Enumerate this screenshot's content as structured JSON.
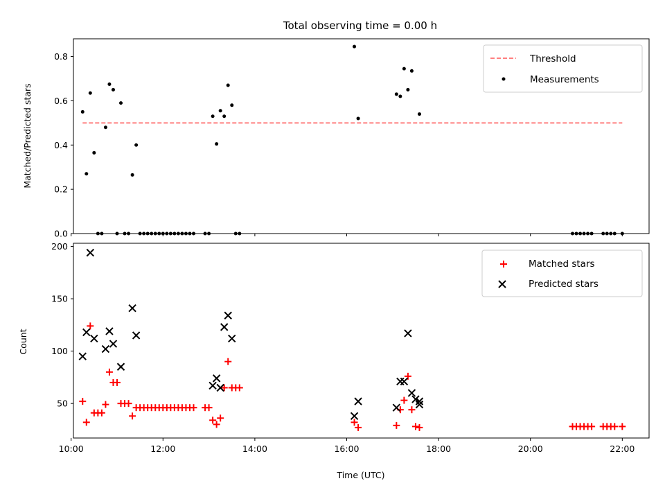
{
  "chart_data": [
    {
      "type": "scatter",
      "title": "Total observing time = 0.00 h",
      "xlabel": "",
      "ylabel": "Matched/Predicted stars",
      "xlim": [
        "10:03",
        "22:35"
      ],
      "ylim": [
        0,
        0.88
      ],
      "yticks": [
        0.0,
        0.2,
        0.4,
        0.6,
        0.8
      ],
      "ytick_labels": [
        "0.0",
        "0.2",
        "0.4",
        "0.6",
        "0.8"
      ],
      "legend_position": "top-right",
      "threshold": {
        "name": "Threshold",
        "value": 0.5,
        "x_start": "10:15",
        "x_end": "22:00",
        "color": "#ff7f7f"
      },
      "series": [
        {
          "name": "Measurements",
          "marker": "dot",
          "color": "#000000",
          "points": [
            [
              "10:15",
              0.55
            ],
            [
              "10:20",
              0.27
            ],
            [
              "10:25",
              0.635
            ],
            [
              "10:30",
              0.365
            ],
            [
              "10:35",
              0.0
            ],
            [
              "10:40",
              0.0
            ],
            [
              "10:45",
              0.48
            ],
            [
              "10:50",
              0.675
            ],
            [
              "10:55",
              0.65
            ],
            [
              "11:00",
              0.0
            ],
            [
              "11:05",
              0.59
            ],
            [
              "11:10",
              0.0
            ],
            [
              "11:15",
              0.0
            ],
            [
              "11:20",
              0.265
            ],
            [
              "11:25",
              0.4
            ],
            [
              "11:30",
              0.0
            ],
            [
              "11:35",
              0.0
            ],
            [
              "11:40",
              0.0
            ],
            [
              "11:45",
              0.0
            ],
            [
              "11:50",
              0.0
            ],
            [
              "11:55",
              0.0
            ],
            [
              "12:00",
              0.0
            ],
            [
              "12:05",
              0.0
            ],
            [
              "12:10",
              0.0
            ],
            [
              "12:15",
              0.0
            ],
            [
              "12:20",
              0.0
            ],
            [
              "12:25",
              0.0
            ],
            [
              "12:30",
              0.0
            ],
            [
              "12:35",
              0.0
            ],
            [
              "12:40",
              0.0
            ],
            [
              "12:55",
              0.0
            ],
            [
              "13:00",
              0.0
            ],
            [
              "13:05",
              0.53
            ],
            [
              "13:10",
              0.405
            ],
            [
              "13:15",
              0.555
            ],
            [
              "13:20",
              0.53
            ],
            [
              "13:25",
              0.67
            ],
            [
              "13:30",
              0.58
            ],
            [
              "13:35",
              0.0
            ],
            [
              "13:40",
              0.0
            ],
            [
              "16:10",
              0.845
            ],
            [
              "16:15",
              0.52
            ],
            [
              "17:05",
              0.63
            ],
            [
              "17:10",
              0.62
            ],
            [
              "17:15",
              0.745
            ],
            [
              "17:20",
              0.65
            ],
            [
              "17:25",
              0.735
            ],
            [
              "17:35",
              0.54
            ],
            [
              "20:55",
              0.0
            ],
            [
              "21:00",
              0.0
            ],
            [
              "21:05",
              0.0
            ],
            [
              "21:10",
              0.0
            ],
            [
              "21:15",
              0.0
            ],
            [
              "21:20",
              0.0
            ],
            [
              "21:35",
              0.0
            ],
            [
              "21:40",
              0.0
            ],
            [
              "21:45",
              0.0
            ],
            [
              "21:50",
              0.0
            ],
            [
              "22:00",
              0.0
            ]
          ]
        }
      ]
    },
    {
      "type": "scatter",
      "title": "",
      "xlabel": "Time (UTC)",
      "ylabel": "Count",
      "xlim": [
        "10:03",
        "22:35"
      ],
      "ylim": [
        17,
        203
      ],
      "yticks": [
        50,
        100,
        150,
        200
      ],
      "ytick_labels": [
        "50",
        "100",
        "150",
        "200"
      ],
      "xticks": [
        "10:00",
        "12:00",
        "14:00",
        "16:00",
        "18:00",
        "20:00",
        "22:00"
      ],
      "legend_position": "top-right",
      "series": [
        {
          "name": "Matched stars",
          "marker": "plus",
          "color": "#ff0000",
          "points": [
            [
              "10:15",
              52
            ],
            [
              "10:20",
              32
            ],
            [
              "10:25",
              124
            ],
            [
              "10:30",
              41
            ],
            [
              "10:35",
              41
            ],
            [
              "10:40",
              41
            ],
            [
              "10:45",
              49
            ],
            [
              "10:50",
              80
            ],
            [
              "10:55",
              70
            ],
            [
              "11:00",
              70
            ],
            [
              "11:05",
              50
            ],
            [
              "11:10",
              50
            ],
            [
              "11:15",
              50
            ],
            [
              "11:20",
              38
            ],
            [
              "11:25",
              46
            ],
            [
              "11:30",
              46
            ],
            [
              "11:35",
              46
            ],
            [
              "11:40",
              46
            ],
            [
              "11:45",
              46
            ],
            [
              "11:50",
              46
            ],
            [
              "11:55",
              46
            ],
            [
              "12:00",
              46
            ],
            [
              "12:05",
              46
            ],
            [
              "12:10",
              46
            ],
            [
              "12:15",
              46
            ],
            [
              "12:20",
              46
            ],
            [
              "12:25",
              46
            ],
            [
              "12:30",
              46
            ],
            [
              "12:35",
              46
            ],
            [
              "12:40",
              46
            ],
            [
              "12:55",
              46
            ],
            [
              "13:00",
              46
            ],
            [
              "13:05",
              34
            ],
            [
              "13:10",
              30
            ],
            [
              "13:15",
              36
            ],
            [
              "13:20",
              65
            ],
            [
              "13:25",
              90
            ],
            [
              "13:30",
              65
            ],
            [
              "13:35",
              65
            ],
            [
              "13:40",
              65
            ],
            [
              "16:10",
              32
            ],
            [
              "16:15",
              27
            ],
            [
              "17:05",
              29
            ],
            [
              "17:10",
              44
            ],
            [
              "17:15",
              53
            ],
            [
              "17:20",
              76
            ],
            [
              "17:25",
              44
            ],
            [
              "17:30",
              28
            ],
            [
              "17:35",
              27
            ],
            [
              "20:55",
              28
            ],
            [
              "21:00",
              28
            ],
            [
              "21:05",
              28
            ],
            [
              "21:10",
              28
            ],
            [
              "21:15",
              28
            ],
            [
              "21:20",
              28
            ],
            [
              "21:35",
              28
            ],
            [
              "21:40",
              28
            ],
            [
              "21:45",
              28
            ],
            [
              "21:50",
              28
            ],
            [
              "22:00",
              28
            ]
          ]
        },
        {
          "name": "Predicted stars",
          "marker": "x",
          "color": "#000000",
          "points": [
            [
              "10:15",
              95
            ],
            [
              "10:20",
              118
            ],
            [
              "10:25",
              194
            ],
            [
              "10:30",
              112
            ],
            [
              "10:45",
              102
            ],
            [
              "10:50",
              119
            ],
            [
              "10:55",
              107
            ],
            [
              "11:05",
              85
            ],
            [
              "11:20",
              141
            ],
            [
              "11:25",
              115
            ],
            [
              "13:05",
              67
            ],
            [
              "13:10",
              74
            ],
            [
              "13:15",
              65
            ],
            [
              "13:20",
              123
            ],
            [
              "13:25",
              134
            ],
            [
              "13:30",
              112
            ],
            [
              "16:10",
              38
            ],
            [
              "16:15",
              52
            ],
            [
              "17:05",
              46
            ],
            [
              "17:10",
              71
            ],
            [
              "17:15",
              71
            ],
            [
              "17:20",
              117
            ],
            [
              "17:25",
              60
            ],
            [
              "17:30",
              54
            ],
            [
              "17:35",
              52
            ],
            [
              "17:35",
              49
            ]
          ]
        }
      ]
    }
  ]
}
